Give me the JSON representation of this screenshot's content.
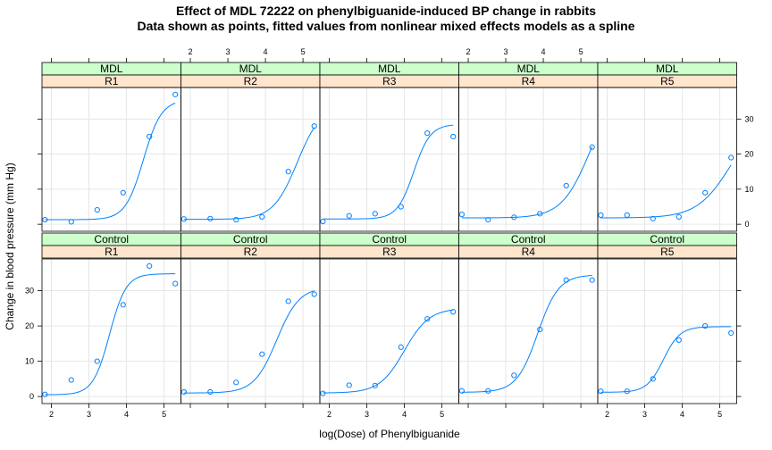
{
  "chart_data": {
    "type": "scatter",
    "title": "Effect of MDL 72222 on phenylbiguanide-induced BP change in rabbits",
    "subtitle": "Data shown as points, fitted values from nonlinear mixed effects models as a spline",
    "xlabel": "log(Dose) of Phenylbiguanide",
    "ylabel": "Change in blood pressure (mm Hg)",
    "xlim": [
      1.75,
      5.45
    ],
    "ylim": [
      -2,
      39
    ],
    "x_ticks": [
      2,
      3,
      4,
      5
    ],
    "y_ticks": [
      0,
      10,
      20,
      30
    ],
    "grid": true,
    "colors": {
      "points": "#0080ff",
      "line": "#0080ff",
      "strip_top": "#ccffcc",
      "strip_bottom": "#ffe5cc",
      "grid": "#e6e6e6",
      "frame": "#000000"
    },
    "x": [
      1.83,
      2.53,
      3.22,
      3.91,
      4.61,
      5.3
    ],
    "panels": [
      {
        "treatment": "MDL",
        "animal": "R1",
        "y": [
          1.3,
          0.7,
          4.1,
          9.0,
          25.0,
          37.0
        ],
        "fit": {
          "low": 1.3,
          "high": 35.5,
          "mid": 4.45,
          "scale": 0.24
        }
      },
      {
        "treatment": "MDL",
        "animal": "R2",
        "y": [
          1.5,
          1.6,
          1.3,
          2.1,
          15.0,
          28.0
        ],
        "fit": {
          "low": 1.4,
          "high": 34.0,
          "mid": 4.85,
          "scale": 0.32
        }
      },
      {
        "treatment": "MDL",
        "animal": "R3",
        "y": [
          0.8,
          2.4,
          3.0,
          5.0,
          26.0,
          25.0
        ],
        "fit": {
          "low": 1.5,
          "high": 28.5,
          "mid": 4.25,
          "scale": 0.22
        }
      },
      {
        "treatment": "MDL",
        "animal": "R4",
        "y": [
          2.8,
          1.3,
          2.0,
          3.0,
          11.0,
          22.0
        ],
        "fit": {
          "low": 1.8,
          "high": 40.0,
          "mid": 5.25,
          "scale": 0.38
        }
      },
      {
        "treatment": "MDL",
        "animal": "R5",
        "y": [
          2.6,
          2.6,
          1.6,
          2.1,
          9.0,
          19.0
        ],
        "fit": {
          "low": 1.8,
          "high": 32.0,
          "mid": 5.3,
          "scale": 0.45
        }
      },
      {
        "treatment": "Control",
        "animal": "R1",
        "y": [
          0.6,
          4.7,
          10.0,
          26.0,
          37.0,
          32.0
        ],
        "fit": {
          "low": 0.5,
          "high": 34.8,
          "mid": 3.55,
          "scale": 0.22
        }
      },
      {
        "treatment": "Control",
        "animal": "R2",
        "y": [
          1.3,
          1.3,
          4.0,
          12.0,
          27.0,
          29.0
        ],
        "fit": {
          "low": 1.0,
          "high": 31.0,
          "mid": 4.3,
          "scale": 0.3
        }
      },
      {
        "treatment": "Control",
        "animal": "R3",
        "y": [
          0.9,
          3.2,
          3.1,
          14.0,
          22.0,
          24.0
        ],
        "fit": {
          "low": 1.0,
          "high": 25.0,
          "mid": 4.0,
          "scale": 0.33
        }
      },
      {
        "treatment": "Control",
        "animal": "R4",
        "y": [
          1.6,
          1.6,
          6.0,
          19.0,
          33.0,
          33.0
        ],
        "fit": {
          "low": 1.2,
          "high": 34.5,
          "mid": 3.85,
          "scale": 0.28
        }
      },
      {
        "treatment": "Control",
        "animal": "R5",
        "y": [
          1.5,
          1.5,
          5.0,
          16.0,
          20.0,
          18.0
        ],
        "fit": {
          "low": 1.2,
          "high": 19.8,
          "mid": 3.5,
          "scale": 0.22
        }
      }
    ]
  }
}
